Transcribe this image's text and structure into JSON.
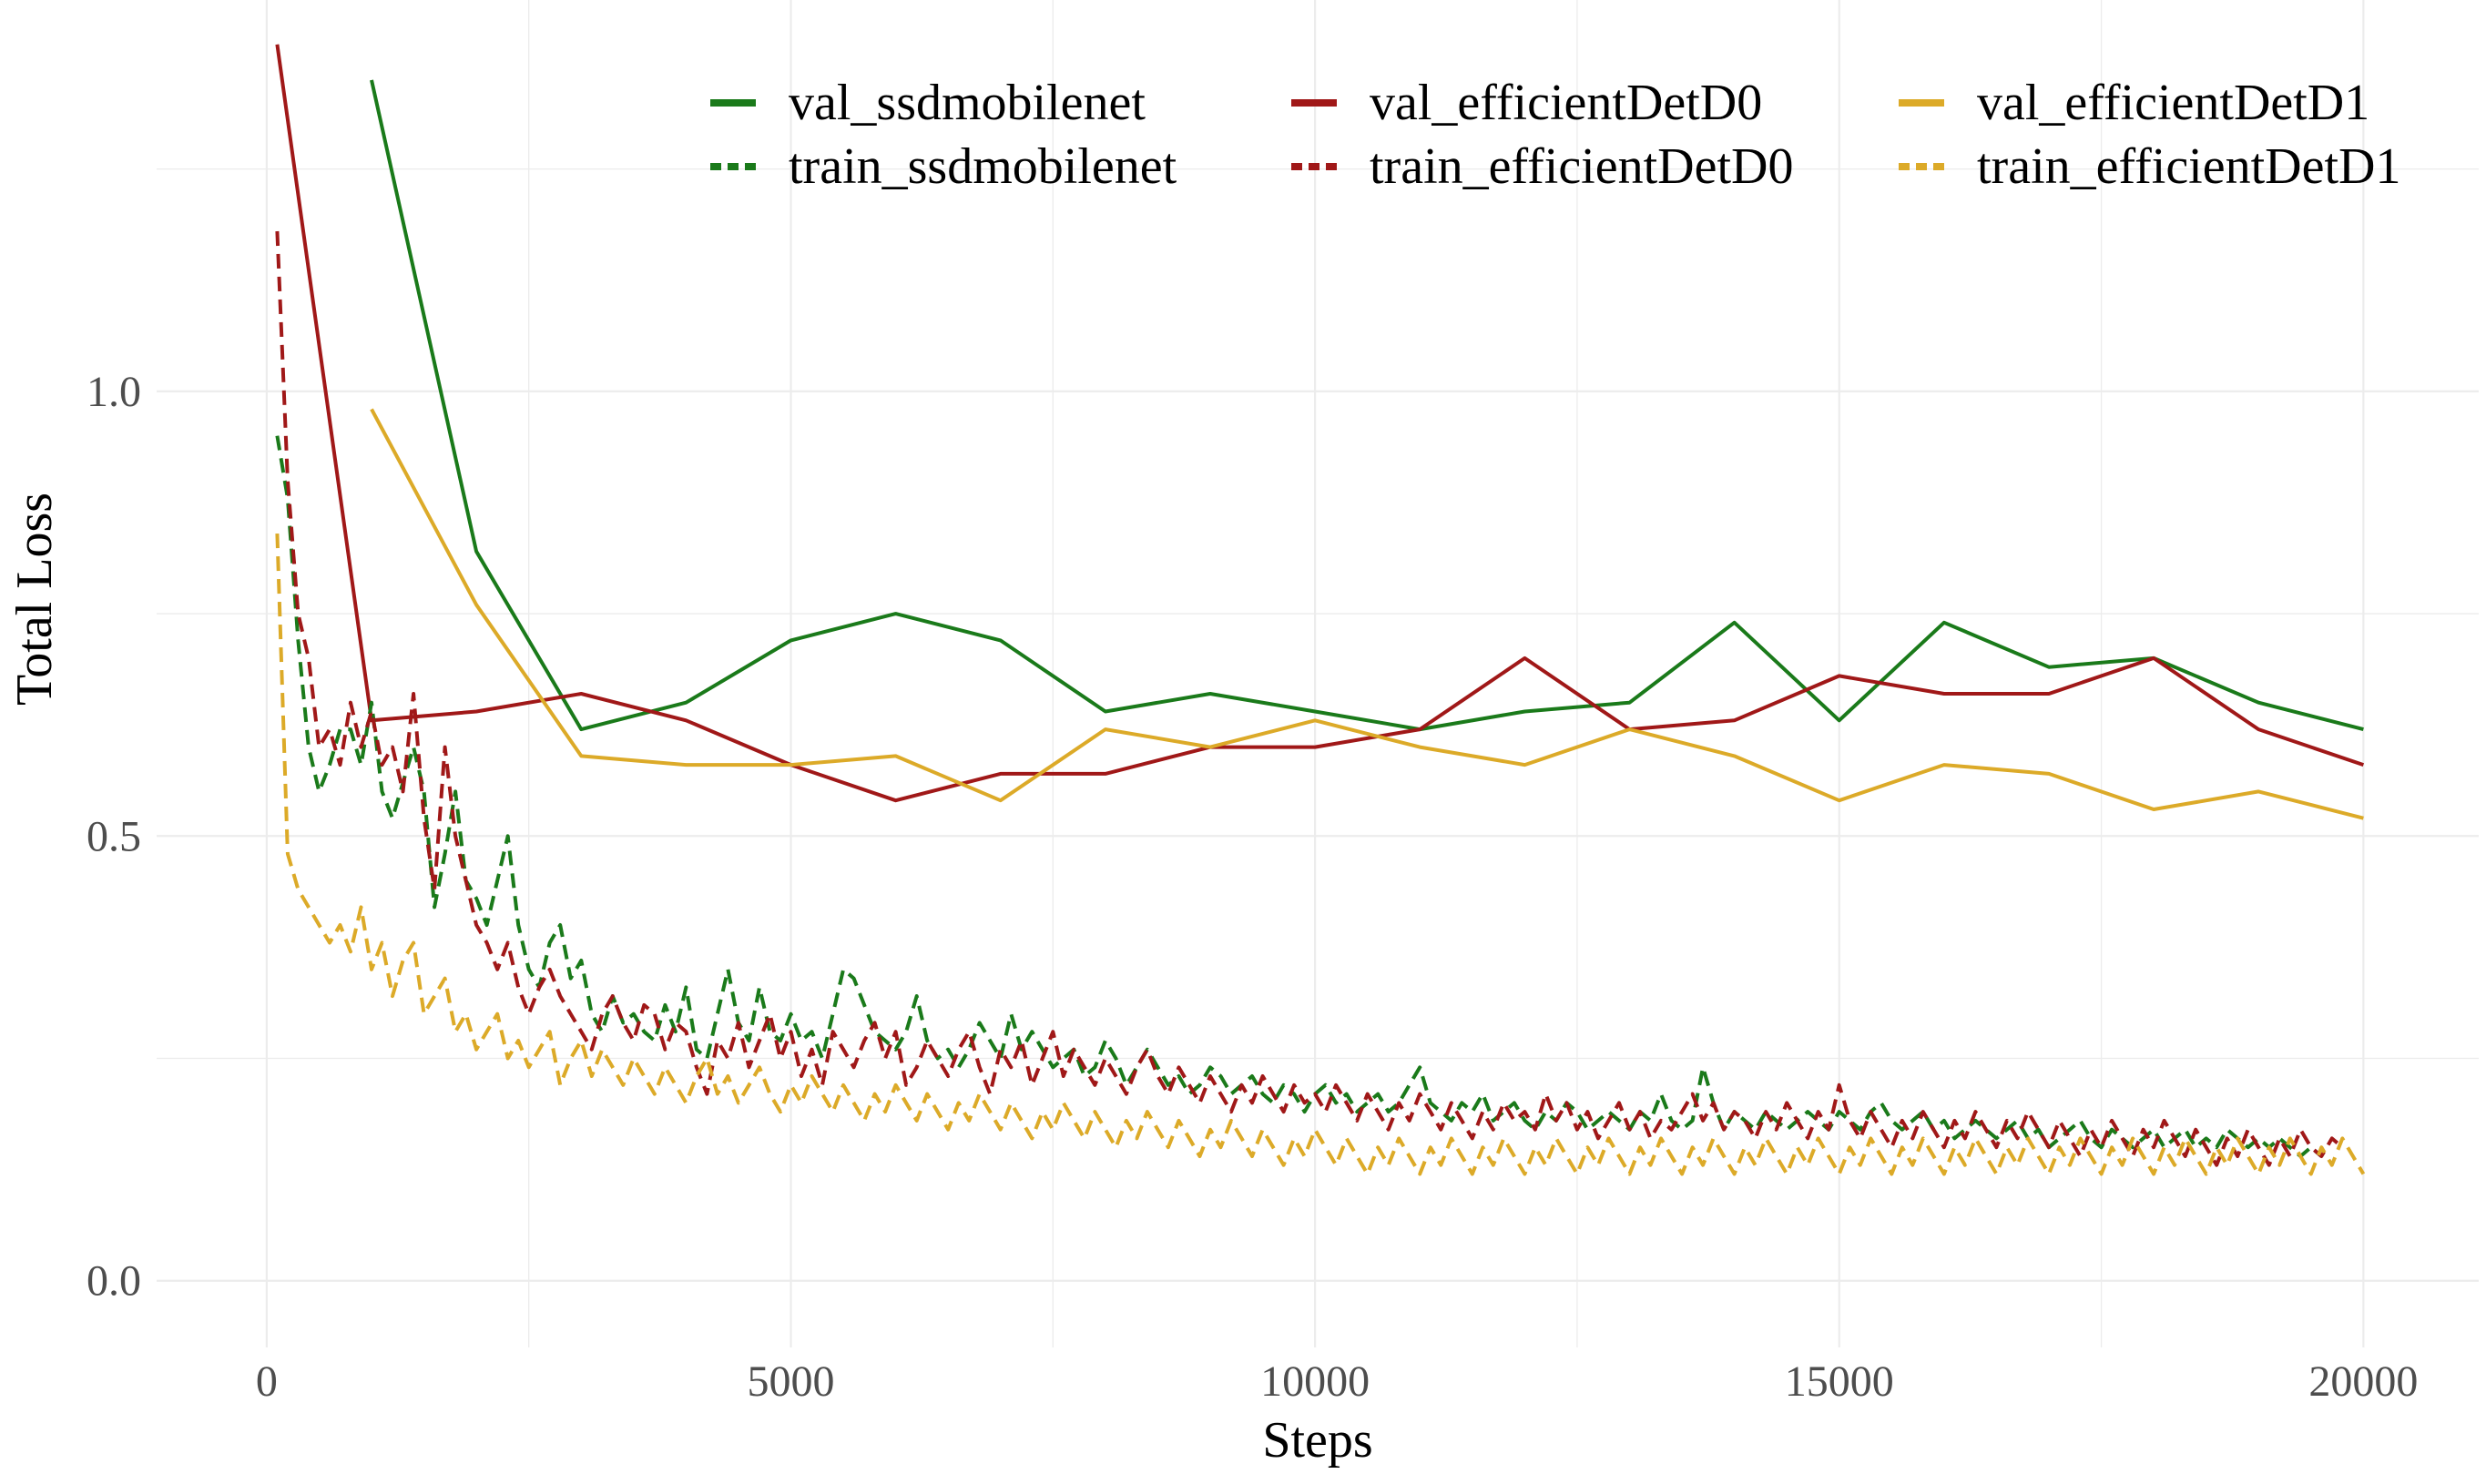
{
  "chart_data": {
    "type": "line",
    "title": "",
    "xlabel": "Steps",
    "ylabel": "Total Loss",
    "xlim": [
      -1050,
      21100
    ],
    "ylim": [
      -0.075,
      1.44
    ],
    "xticks": [
      0,
      5000,
      10000,
      15000,
      20000
    ],
    "xtick_labels": [
      "0",
      "5000",
      "10000",
      "15000",
      "20000"
    ],
    "yticks": [
      0.0,
      0.5,
      1.0
    ],
    "ytick_labels": [
      "0.0",
      "0.5",
      "1.0"
    ],
    "grid": true,
    "legend_position": "top-right",
    "colors": {
      "ssdmobilenet": "#1a7a1a",
      "efficientDetD0": "#a01818",
      "efficientDetD1": "#dcaa28",
      "grid": "#ececec"
    },
    "val_x": [
      1000,
      2000,
      3000,
      4000,
      5000,
      6000,
      7000,
      8000,
      9000,
      10000,
      11000,
      12000,
      13000,
      14000,
      15000,
      16000,
      17000,
      18000,
      19000,
      20000
    ],
    "train_x_step": 100,
    "train_x_start": 100,
    "train_x_end": 20000,
    "series": [
      {
        "name": "val_ssdmobilenet",
        "group": "ssdmobilenet",
        "kind": "val",
        "x": [
          1000,
          2000,
          3000,
          4000,
          5000,
          6000,
          7000,
          8000,
          9000,
          10000,
          11000,
          12000,
          13000,
          14000,
          15000,
          16000,
          17000,
          18000,
          19000,
          20000
        ],
        "values": [
          1.35,
          0.82,
          0.62,
          0.65,
          0.72,
          0.75,
          0.72,
          0.64,
          0.66,
          0.64,
          0.62,
          0.64,
          0.65,
          0.74,
          0.63,
          0.74,
          0.69,
          0.7,
          0.65,
          0.62
        ]
      },
      {
        "name": "val_efficientDetD0",
        "group": "efficientDetD0",
        "kind": "val",
        "x": [
          100,
          1000,
          2000,
          3000,
          4000,
          5000,
          6000,
          7000,
          8000,
          9000,
          10000,
          11000,
          12000,
          13000,
          14000,
          15000,
          16000,
          17000,
          18000,
          19000,
          20000
        ],
        "values": [
          1.39,
          0.63,
          0.64,
          0.66,
          0.63,
          0.58,
          0.54,
          0.57,
          0.57,
          0.6,
          0.6,
          0.62,
          0.7,
          0.62,
          0.63,
          0.68,
          0.66,
          0.66,
          0.7,
          0.62,
          0.58
        ]
      },
      {
        "name": "val_efficientDetD1",
        "group": "efficientDetD1",
        "kind": "val",
        "x": [
          1000,
          2000,
          3000,
          4000,
          5000,
          6000,
          7000,
          8000,
          9000,
          10000,
          11000,
          12000,
          13000,
          14000,
          15000,
          16000,
          17000,
          18000,
          19000,
          20000
        ],
        "values": [
          0.98,
          0.76,
          0.59,
          0.58,
          0.58,
          0.59,
          0.54,
          0.62,
          0.6,
          0.63,
          0.6,
          0.58,
          0.62,
          0.59,
          0.54,
          0.58,
          0.57,
          0.53,
          0.55,
          0.52
        ]
      },
      {
        "name": "train_ssdmobilenet",
        "group": "ssdmobilenet",
        "kind": "train",
        "values": [
          0.95,
          0.88,
          0.72,
          0.6,
          0.55,
          0.58,
          0.62,
          0.62,
          0.58,
          0.65,
          0.55,
          0.52,
          0.56,
          0.6,
          0.55,
          0.42,
          0.48,
          0.55,
          0.45,
          0.43,
          0.4,
          0.45,
          0.5,
          0.4,
          0.35,
          0.33,
          0.38,
          0.4,
          0.34,
          0.36,
          0.3,
          0.28,
          0.32,
          0.29,
          0.3,
          0.28,
          0.27,
          0.31,
          0.28,
          0.33,
          0.26,
          0.25,
          0.3,
          0.35,
          0.29,
          0.27,
          0.33,
          0.28,
          0.27,
          0.3,
          0.27,
          0.28,
          0.25,
          0.3,
          0.35,
          0.34,
          0.31,
          0.28,
          0.27,
          0.26,
          0.28,
          0.32,
          0.27,
          0.25,
          0.26,
          0.24,
          0.26,
          0.29,
          0.27,
          0.25,
          0.3,
          0.26,
          0.28,
          0.26,
          0.24,
          0.25,
          0.26,
          0.23,
          0.24,
          0.27,
          0.25,
          0.22,
          0.24,
          0.26,
          0.24,
          0.22,
          0.23,
          0.21,
          0.22,
          0.24,
          0.23,
          0.21,
          0.22,
          0.23,
          0.21,
          0.2,
          0.22,
          0.21,
          0.19,
          0.21,
          0.22,
          0.2,
          0.21,
          0.19,
          0.2,
          0.21,
          0.19,
          0.2,
          0.22,
          0.24,
          0.2,
          0.19,
          0.18,
          0.2,
          0.19,
          0.21,
          0.18,
          0.19,
          0.2,
          0.18,
          0.17,
          0.19,
          0.18,
          0.2,
          0.19,
          0.17,
          0.18,
          0.19,
          0.18,
          0.17,
          0.19,
          0.18,
          0.21,
          0.18,
          0.17,
          0.18,
          0.24,
          0.2,
          0.17,
          0.19,
          0.18,
          0.17,
          0.19,
          0.18,
          0.17,
          0.18,
          0.19,
          0.18,
          0.17,
          0.19,
          0.18,
          0.17,
          0.19,
          0.2,
          0.18,
          0.17,
          0.18,
          0.19,
          0.17,
          0.18,
          0.16,
          0.17,
          0.18,
          0.17,
          0.16,
          0.17,
          0.18,
          0.16,
          0.17,
          0.15,
          0.16,
          0.17,
          0.18,
          0.16,
          0.15,
          0.17,
          0.16,
          0.15,
          0.16,
          0.17,
          0.15,
          0.16,
          0.17,
          0.15,
          0.16,
          0.15,
          0.17,
          0.16,
          0.15,
          0.16,
          0.15,
          0.16,
          0.15,
          0.14,
          0.15,
          0.14
        ]
      },
      {
        "name": "train_efficientDetD0",
        "group": "efficientDetD0",
        "kind": "train",
        "values": [
          1.18,
          0.9,
          0.75,
          0.7,
          0.6,
          0.62,
          0.58,
          0.65,
          0.6,
          0.64,
          0.58,
          0.6,
          0.55,
          0.66,
          0.52,
          0.44,
          0.6,
          0.5,
          0.45,
          0.4,
          0.38,
          0.35,
          0.38,
          0.33,
          0.3,
          0.33,
          0.35,
          0.32,
          0.3,
          0.28,
          0.26,
          0.3,
          0.32,
          0.29,
          0.27,
          0.31,
          0.3,
          0.26,
          0.29,
          0.28,
          0.24,
          0.21,
          0.27,
          0.25,
          0.29,
          0.24,
          0.27,
          0.3,
          0.25,
          0.28,
          0.23,
          0.26,
          0.22,
          0.28,
          0.26,
          0.24,
          0.27,
          0.29,
          0.25,
          0.28,
          0.22,
          0.24,
          0.27,
          0.25,
          0.23,
          0.26,
          0.28,
          0.24,
          0.21,
          0.26,
          0.24,
          0.27,
          0.22,
          0.25,
          0.28,
          0.23,
          0.26,
          0.24,
          0.22,
          0.25,
          0.23,
          0.21,
          0.24,
          0.26,
          0.23,
          0.21,
          0.24,
          0.22,
          0.2,
          0.23,
          0.21,
          0.19,
          0.22,
          0.2,
          0.23,
          0.21,
          0.19,
          0.22,
          0.2,
          0.21,
          0.19,
          0.22,
          0.2,
          0.18,
          0.21,
          0.19,
          0.17,
          0.2,
          0.18,
          0.21,
          0.19,
          0.17,
          0.2,
          0.18,
          0.16,
          0.19,
          0.17,
          0.2,
          0.18,
          0.19,
          0.17,
          0.21,
          0.18,
          0.2,
          0.17,
          0.19,
          0.16,
          0.18,
          0.2,
          0.17,
          0.19,
          0.16,
          0.18,
          0.17,
          0.19,
          0.21,
          0.18,
          0.2,
          0.17,
          0.19,
          0.18,
          0.16,
          0.19,
          0.17,
          0.2,
          0.18,
          0.16,
          0.19,
          0.17,
          0.22,
          0.18,
          0.16,
          0.19,
          0.17,
          0.15,
          0.18,
          0.16,
          0.19,
          0.17,
          0.15,
          0.18,
          0.16,
          0.19,
          0.17,
          0.15,
          0.18,
          0.16,
          0.19,
          0.17,
          0.15,
          0.18,
          0.16,
          0.14,
          0.17,
          0.15,
          0.18,
          0.16,
          0.14,
          0.17,
          0.15,
          0.18,
          0.16,
          0.14,
          0.17,
          0.15,
          0.13,
          0.16,
          0.14,
          0.17,
          0.15,
          0.13,
          0.16,
          0.14,
          0.17,
          0.15,
          0.14,
          0.16,
          0.15
        ]
      },
      {
        "name": "train_efficientDetD1",
        "group": "efficientDetD1",
        "kind": "train",
        "values": [
          0.84,
          0.48,
          0.44,
          0.42,
          0.4,
          0.38,
          0.4,
          0.37,
          0.42,
          0.35,
          0.38,
          0.32,
          0.36,
          0.38,
          0.3,
          0.32,
          0.34,
          0.28,
          0.3,
          0.26,
          0.28,
          0.3,
          0.25,
          0.27,
          0.24,
          0.26,
          0.28,
          0.22,
          0.25,
          0.27,
          0.23,
          0.26,
          0.24,
          0.22,
          0.25,
          0.23,
          0.21,
          0.24,
          0.22,
          0.2,
          0.23,
          0.25,
          0.21,
          0.23,
          0.2,
          0.22,
          0.24,
          0.21,
          0.19,
          0.22,
          0.2,
          0.23,
          0.21,
          0.19,
          0.22,
          0.2,
          0.18,
          0.21,
          0.19,
          0.22,
          0.2,
          0.18,
          0.21,
          0.19,
          0.17,
          0.2,
          0.18,
          0.21,
          0.19,
          0.17,
          0.2,
          0.18,
          0.16,
          0.19,
          0.17,
          0.2,
          0.18,
          0.16,
          0.19,
          0.17,
          0.15,
          0.18,
          0.16,
          0.19,
          0.17,
          0.15,
          0.18,
          0.16,
          0.14,
          0.17,
          0.15,
          0.18,
          0.16,
          0.14,
          0.17,
          0.15,
          0.13,
          0.16,
          0.14,
          0.17,
          0.15,
          0.13,
          0.16,
          0.14,
          0.12,
          0.15,
          0.13,
          0.16,
          0.14,
          0.12,
          0.15,
          0.13,
          0.16,
          0.14,
          0.12,
          0.15,
          0.13,
          0.16,
          0.14,
          0.12,
          0.15,
          0.13,
          0.16,
          0.14,
          0.12,
          0.15,
          0.13,
          0.16,
          0.14,
          0.12,
          0.15,
          0.13,
          0.16,
          0.14,
          0.12,
          0.15,
          0.13,
          0.16,
          0.14,
          0.12,
          0.15,
          0.13,
          0.16,
          0.14,
          0.12,
          0.15,
          0.13,
          0.16,
          0.14,
          0.12,
          0.15,
          0.13,
          0.16,
          0.14,
          0.12,
          0.15,
          0.13,
          0.16,
          0.14,
          0.12,
          0.15,
          0.13,
          0.16,
          0.14,
          0.12,
          0.15,
          0.13,
          0.16,
          0.14,
          0.12,
          0.15,
          0.13,
          0.16,
          0.14,
          0.12,
          0.15,
          0.13,
          0.16,
          0.14,
          0.12,
          0.15,
          0.13,
          0.16,
          0.14,
          0.12,
          0.15,
          0.13,
          0.16,
          0.14,
          0.12,
          0.15,
          0.13,
          0.16,
          0.14,
          0.12,
          0.15,
          0.13,
          0.16,
          0.14,
          0.12,
          0.13
        ]
      }
    ],
    "legend": [
      {
        "label": "val_ssdmobilenet",
        "group": "ssdmobilenet",
        "kind": "val"
      },
      {
        "label": "val_efficientDetD0",
        "group": "efficientDetD0",
        "kind": "val"
      },
      {
        "label": "val_efficientDetD1",
        "group": "efficientDetD1",
        "kind": "val"
      },
      {
        "label": "train_ssdmobilenet",
        "group": "ssdmobilenet",
        "kind": "train"
      },
      {
        "label": "train_efficientDetD0",
        "group": "efficientDetD0",
        "kind": "train"
      },
      {
        "label": "train_efficientDetD1",
        "group": "efficientDetD1",
        "kind": "train"
      }
    ]
  }
}
